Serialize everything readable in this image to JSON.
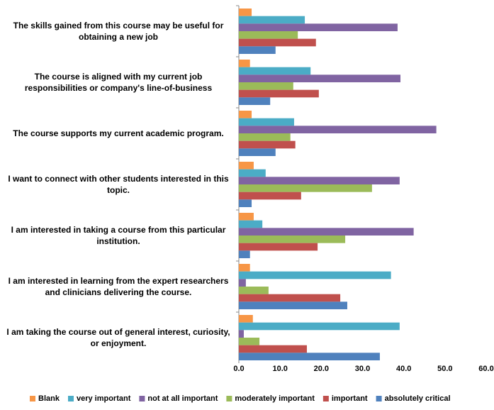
{
  "chart_data": {
    "type": "bar",
    "orientation": "horizontal",
    "categories": [
      "The skills gained from this course may be useful for obtaining a new job",
      "The course is aligned with my current job responsibilities or company's line-of-business",
      "The course supports my current academic program.",
      "I want to connect with other students interested in this topic.",
      "I am interested in taking a course from this particular institution.",
      "I am interested in learning from the expert researchers and clinicians delivering the course.",
      "I am taking the course out of general interest, curiosity, or enjoyment."
    ],
    "series": [
      {
        "name": "Blank",
        "color": "#f79646",
        "values": [
          3.1,
          2.7,
          3.1,
          3.6,
          3.6,
          2.7,
          3.4
        ]
      },
      {
        "name": "very important",
        "color": "#4bacc6",
        "values": [
          16.0,
          17.4,
          13.4,
          6.5,
          5.7,
          36.9,
          39.0
        ]
      },
      {
        "name": "not at all important",
        "color": "#8064a2",
        "values": [
          38.5,
          39.2,
          47.9,
          39.0,
          42.4,
          1.7,
          1.2
        ]
      },
      {
        "name": "moderately important",
        "color": "#9bbb59",
        "values": [
          14.3,
          13.2,
          12.5,
          32.3,
          25.8,
          7.2,
          5.0
        ]
      },
      {
        "name": "important",
        "color": "#c0504d",
        "values": [
          18.7,
          19.4,
          13.7,
          15.1,
          19.1,
          24.6,
          16.5
        ]
      },
      {
        "name": "absolutely critical",
        "color": "#4f81bd",
        "values": [
          8.9,
          7.6,
          8.9,
          3.1,
          2.7,
          26.3,
          34.2
        ]
      }
    ],
    "xlim": [
      0,
      60
    ],
    "xticks": [
      {
        "value": 0,
        "label": "0.0"
      },
      {
        "value": 10,
        "label": "10.0"
      },
      {
        "value": 20,
        "label": "20.0"
      },
      {
        "value": 30,
        "label": "30.0"
      },
      {
        "value": 40,
        "label": "40.0"
      },
      {
        "value": 50,
        "label": "50.0"
      },
      {
        "value": 60,
        "label": "60.0"
      }
    ],
    "grid": false,
    "legend": "bottom"
  }
}
